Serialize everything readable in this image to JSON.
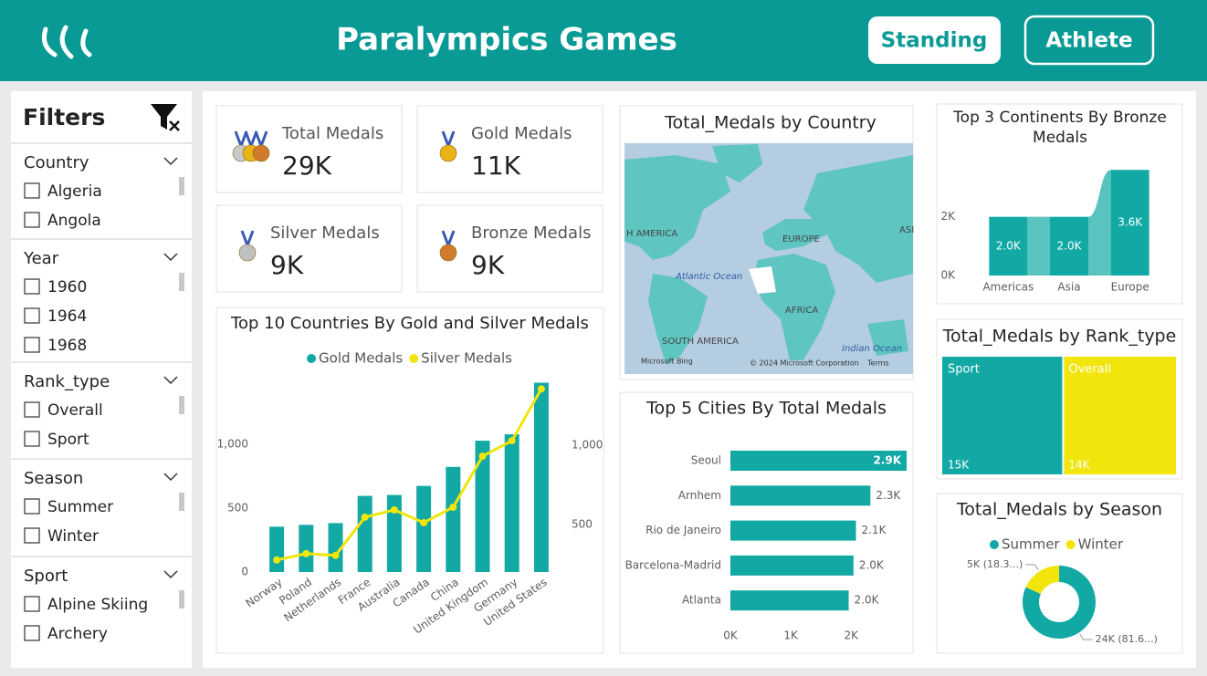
{
  "header": {
    "title": "Paralympics Games",
    "buttons": [
      "Standing",
      "Athlete"
    ]
  },
  "filters": {
    "title": "Filters",
    "sections": [
      {
        "name": "Country",
        "options": [
          "Algeria",
          "Angola"
        ]
      },
      {
        "name": "Year",
        "options": [
          "1960",
          "1964",
          "1968"
        ]
      },
      {
        "name": "Rank_type",
        "options": [
          "Overall",
          "Sport"
        ]
      },
      {
        "name": "Season",
        "options": [
          "Summer",
          "Winter"
        ]
      },
      {
        "name": "Sport",
        "options": [
          "Alpine Skiing",
          "Archery"
        ]
      }
    ]
  },
  "cards": [
    {
      "label": "Total Medals",
      "value": "29K"
    },
    {
      "label": "Gold Medals",
      "value": "11K"
    },
    {
      "label": "Silver Medals",
      "value": "9K"
    },
    {
      "label": "Bronze Medals",
      "value": "9K"
    }
  ],
  "map": {
    "title": "Total_Medals by Country",
    "labels": [
      "H AMERICA",
      "EUROPE",
      "ASI",
      "Atlantic Ocean",
      "AFRICA",
      "SOUTH AMERICA",
      "Indian Ocean"
    ],
    "attribution": [
      "Microsoft Bing",
      "© 2024 Microsoft Corporation",
      "Terms"
    ]
  },
  "chart_data": [
    {
      "type": "combo",
      "title": "Top 10 Countries By Gold and Silver Medals",
      "categories": [
        "Norway",
        "Poland",
        "Netherlands",
        "France",
        "Australia",
        "Canada",
        "China",
        "United Kingdom",
        "Germany",
        "United States"
      ],
      "series": [
        {
          "name": "Gold Medals",
          "type": "bar",
          "color": "#12a9a5",
          "values": [
            355,
            369,
            383,
            596,
            603,
            674,
            823,
            1028,
            1078,
            1482
          ]
        },
        {
          "name": "Silver Medals",
          "type": "line",
          "axis": "y2",
          "color": "#f2e50b",
          "values": [
            276,
            316,
            305,
            546,
            592,
            511,
            609,
            931,
            1029,
            1356
          ]
        }
      ],
      "ylim": [
        0,
        1550
      ],
      "yticks": [
        0,
        500,
        {
          "value": 1000,
          "label": "1,000"
        }
      ],
      "y2lim": [
        200,
        1450
      ],
      "y2ticks": [
        500,
        {
          "value": 1000,
          "label": "1,000"
        }
      ],
      "legend": "top"
    },
    {
      "type": "ribbon",
      "title": "Top 3 Continents By Bronze Medals",
      "categories": [
        "Americas",
        "Asia",
        "Europe"
      ],
      "values": [
        2000,
        2000,
        3600
      ],
      "value_labels": [
        "2.0K",
        "2.0K",
        "3.6K"
      ],
      "color": "#12a9a5",
      "ylim": [
        0,
        3700
      ],
      "yticks": [
        {
          "value": 0,
          "label": "0K"
        },
        {
          "value": 2000,
          "label": "2K"
        }
      ]
    },
    {
      "type": "hbar",
      "title": "Top 5 Cities By Total Medals",
      "categories": [
        "Seoul",
        "Arnhem",
        "Rio de Janeiro",
        "Barcelona-Madrid",
        "Atlanta"
      ],
      "values": [
        2920,
        2320,
        2080,
        2040,
        1960
      ],
      "value_labels": [
        "2.9K",
        "2.3K",
        "2.1K",
        "2.0K",
        "2.0K"
      ],
      "color": "#12a9a5",
      "xlim": [
        0,
        2950
      ],
      "xticks": [
        {
          "value": 0,
          "label": "0K"
        },
        {
          "value": 1000,
          "label": "1K"
        },
        {
          "value": 2000,
          "label": "2K"
        }
      ]
    },
    {
      "type": "treemap",
      "title": "Total_Medals by Rank_type",
      "categories": [
        "Sport",
        "Overall"
      ],
      "values": [
        15000,
        14000
      ],
      "value_labels": [
        "15K",
        "14K"
      ],
      "colors": [
        "#12a9a5",
        "#f2e50b"
      ]
    },
    {
      "type": "donut",
      "title": "Total_Medals by Season",
      "categories": [
        "Summer",
        "Winter"
      ],
      "values": [
        24000,
        5380
      ],
      "value_labels": [
        "24K (81.6...)",
        "5K (18.3...)"
      ],
      "colors": [
        "#12a9a5",
        "#f2e50b"
      ],
      "legend": "top"
    }
  ]
}
